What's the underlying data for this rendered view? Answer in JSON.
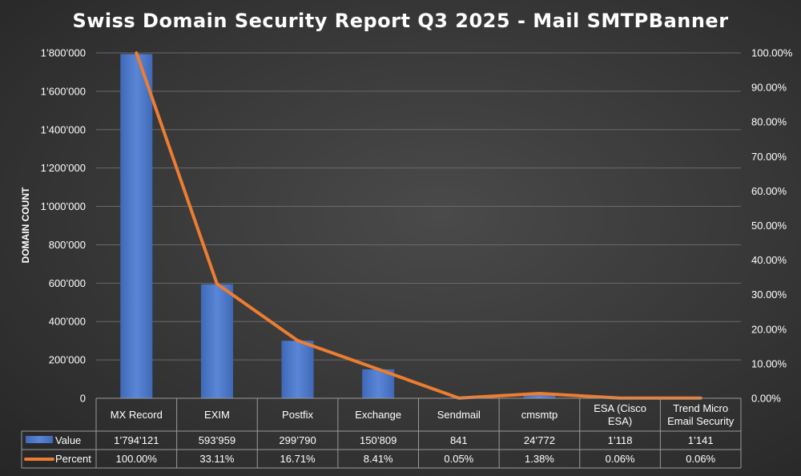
{
  "chart_data": {
    "type": "bar",
    "title": "Swiss Domain Security Report Q3 2025 - Mail SMTPBanner",
    "ylabel": "DOMAIN COUNT",
    "ylim": [
      0,
      1800000
    ],
    "y2lim": [
      0,
      100
    ],
    "y_ticks": [
      "0",
      "200’000",
      "400’000",
      "600’000",
      "800’000",
      "1’000’000",
      "1’200’000",
      "1’400’000",
      "1’600’000",
      "1’800’000"
    ],
    "y2_ticks": [
      "0.00%",
      "10.00%",
      "20.00%",
      "30.00%",
      "40.00%",
      "50.00%",
      "60.00%",
      "70.00%",
      "80.00%",
      "90.00%",
      "100.00%"
    ],
    "grid": true,
    "legend_placement": "data-table",
    "categories": [
      [
        "MX Record"
      ],
      [
        "EXIM"
      ],
      [
        "Postfix"
      ],
      [
        "Exchange"
      ],
      [
        "Sendmail"
      ],
      [
        "cmsmtp"
      ],
      [
        "ESA (Cisco",
        "ESA)"
      ],
      [
        "Trend Micro",
        "Email Security"
      ]
    ],
    "series": [
      {
        "name": "Value",
        "type": "bar",
        "axis": "left",
        "color": "#4472C4",
        "values": [
          1794121,
          593959,
          299790,
          150809,
          841,
          24772,
          1118,
          1141
        ],
        "labels": [
          "1’794’121",
          "593’959",
          "299’790",
          "150’809",
          "841",
          "24’772",
          "1’118",
          "1’141"
        ]
      },
      {
        "name": "Percent",
        "type": "line",
        "axis": "right",
        "color": "#ED7D31",
        "values": [
          100.0,
          33.11,
          16.71,
          8.41,
          0.05,
          1.38,
          0.06,
          0.06
        ],
        "labels": [
          "100.00%",
          "33.11%",
          "16.71%",
          "8.41%",
          "0.05%",
          "1.38%",
          "0.06%",
          "0.06%"
        ]
      }
    ]
  }
}
